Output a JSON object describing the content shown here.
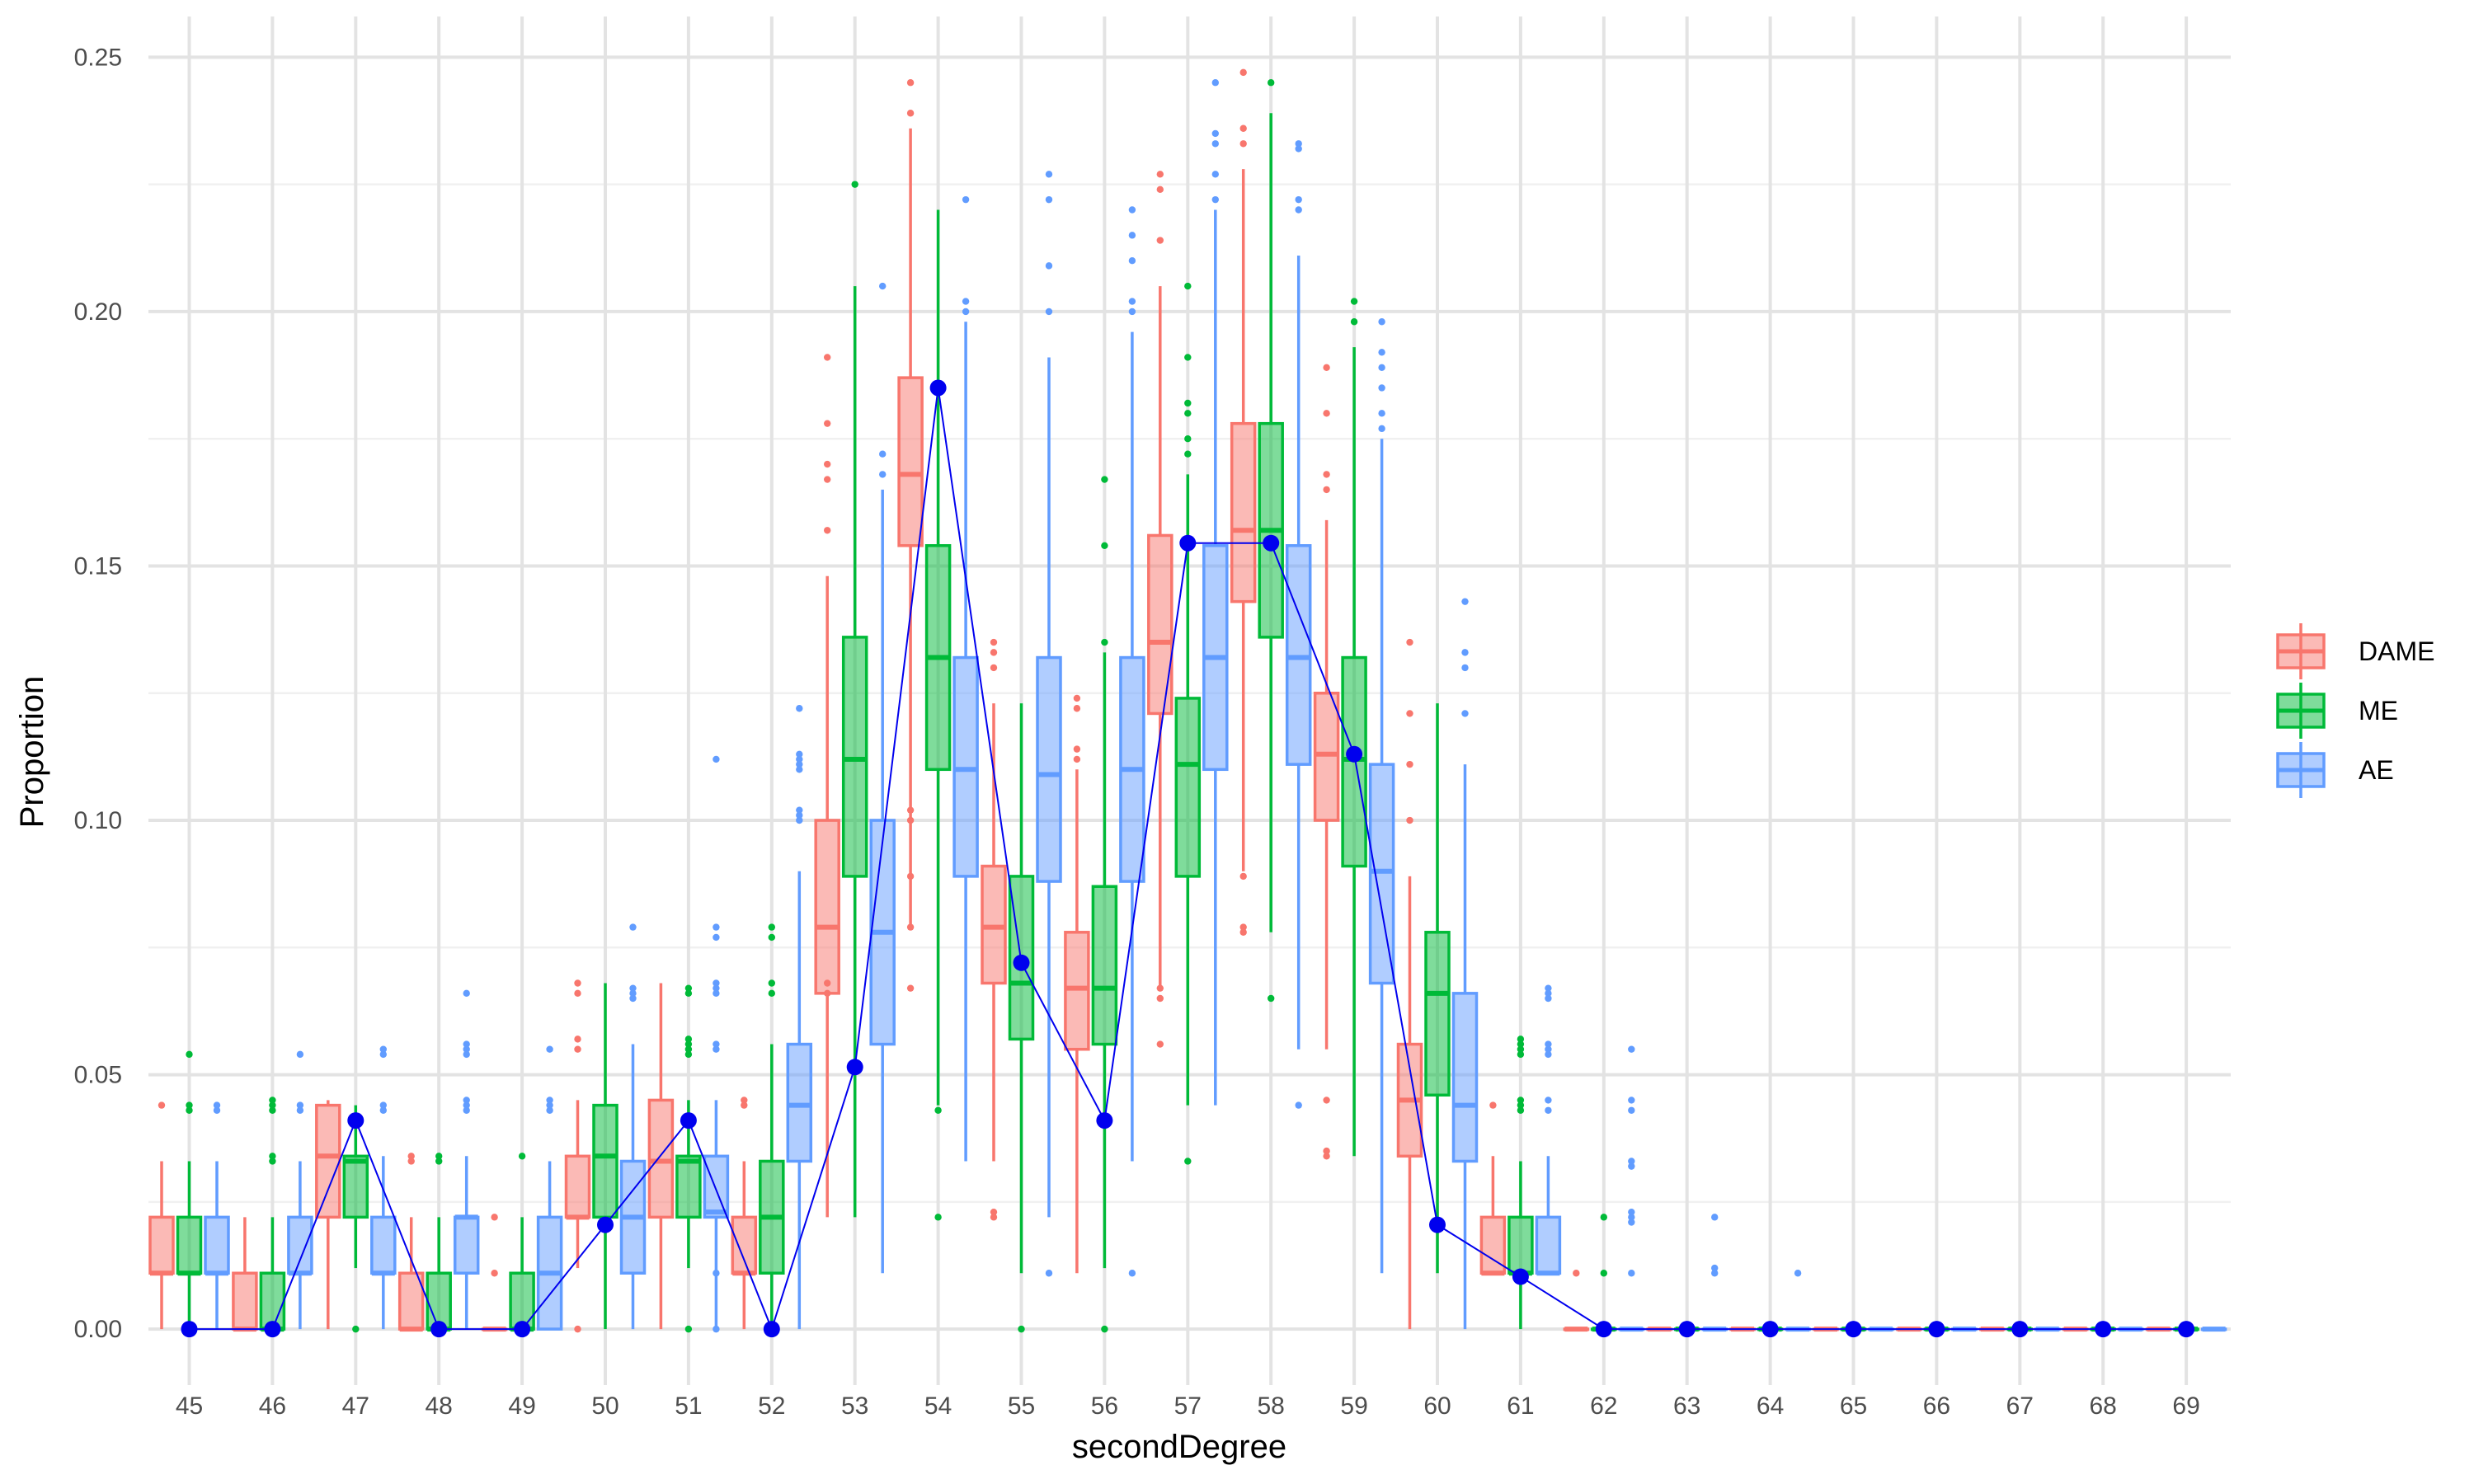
{
  "chart_data": {
    "type": "box",
    "xlabel": "secondDegree",
    "ylabel": "Proportion",
    "ylim": [
      -0.011,
      0.258
    ],
    "yticks": [
      "0.00",
      "0.05",
      "0.10",
      "0.15",
      "0.20",
      "0.25"
    ],
    "grid": true,
    "legend_position": "right",
    "categories": [
      "45",
      "46",
      "47",
      "48",
      "49",
      "50",
      "51",
      "52",
      "53",
      "54",
      "55",
      "56",
      "57",
      "58",
      "59",
      "60",
      "61",
      "62",
      "63",
      "64",
      "65",
      "66",
      "67",
      "68",
      "69"
    ],
    "series": [
      {
        "name": "DAME",
        "color": "#F8766D",
        "boxes": [
          {
            "lw": 0.0,
            "q1": 0.011,
            "med": 0.011,
            "q3": 0.022,
            "uw": 0.033,
            "out": [
              0.044
            ]
          },
          {
            "lw": 0.0,
            "q1": 0.0,
            "med": 0.0,
            "q3": 0.011,
            "uw": 0.022,
            "out": []
          },
          {
            "lw": 0.0,
            "q1": 0.022,
            "med": 0.034,
            "q3": 0.044,
            "uw": 0.045,
            "out": []
          },
          {
            "lw": 0.0,
            "q1": 0.0,
            "med": 0.0,
            "q3": 0.011,
            "uw": 0.022,
            "out": [
              0.033,
              0.034
            ]
          },
          {
            "lw": 0.0,
            "q1": 0.0,
            "med": 0.0,
            "q3": 0.0,
            "uw": 0.0,
            "out": [
              0.011,
              0.022
            ]
          },
          {
            "lw": 0.012,
            "q1": 0.022,
            "med": 0.022,
            "q3": 0.034,
            "uw": 0.045,
            "out": [
              0.055,
              0.057,
              0.066,
              0.068,
              0.0
            ]
          },
          {
            "lw": 0.0,
            "q1": 0.022,
            "med": 0.033,
            "q3": 0.045,
            "uw": 0.068,
            "out": []
          },
          {
            "lw": 0.0,
            "q1": 0.011,
            "med": 0.011,
            "q3": 0.022,
            "uw": 0.033,
            "out": [
              0.044,
              0.045
            ]
          },
          {
            "lw": 0.022,
            "q1": 0.066,
            "med": 0.079,
            "q3": 0.1,
            "uw": 0.148,
            "out": [
              0.157,
              0.167,
              0.17,
              0.178,
              0.191,
              0.066,
              0.068
            ]
          },
          {
            "lw": 0.079,
            "q1": 0.154,
            "med": 0.168,
            "q3": 0.187,
            "uw": 0.236,
            "out": [
              0.239,
              0.245,
              0.1,
              0.102,
              0.089,
              0.079,
              0.067
            ]
          },
          {
            "lw": 0.033,
            "q1": 0.068,
            "med": 0.079,
            "q3": 0.091,
            "uw": 0.123,
            "out": [
              0.13,
              0.133,
              0.135,
              0.022,
              0.023
            ]
          },
          {
            "lw": 0.011,
            "q1": 0.055,
            "med": 0.067,
            "q3": 0.078,
            "uw": 0.11,
            "out": [
              0.112,
              0.114,
              0.122,
              0.124
            ]
          },
          {
            "lw": 0.067,
            "q1": 0.121,
            "med": 0.135,
            "q3": 0.156,
            "uw": 0.205,
            "out": [
              0.214,
              0.224,
              0.227,
              0.065,
              0.067,
              0.056
            ]
          },
          {
            "lw": 0.09,
            "q1": 0.143,
            "med": 0.157,
            "q3": 0.178,
            "uw": 0.228,
            "out": [
              0.233,
              0.236,
              0.247,
              0.089,
              0.079,
              0.078
            ]
          },
          {
            "lw": 0.055,
            "q1": 0.1,
            "med": 0.113,
            "q3": 0.125,
            "uw": 0.159,
            "out": [
              0.165,
              0.168,
              0.18,
              0.189,
              0.045,
              0.034,
              0.035
            ]
          },
          {
            "lw": 0.0,
            "q1": 0.034,
            "med": 0.045,
            "q3": 0.056,
            "uw": 0.089,
            "out": [
              0.1,
              0.111,
              0.121,
              0.135
            ]
          },
          {
            "lw": 0.011,
            "q1": 0.011,
            "med": 0.011,
            "q3": 0.022,
            "uw": 0.034,
            "out": [
              0.044
            ]
          },
          {
            "lw": 0.0,
            "q1": 0.0,
            "med": 0.0,
            "q3": 0.0,
            "uw": 0.0,
            "out": [
              0.011
            ]
          },
          {
            "lw": 0.0,
            "q1": 0.0,
            "med": 0.0,
            "q3": 0.0,
            "uw": 0.0,
            "out": []
          },
          {
            "lw": 0.0,
            "q1": 0.0,
            "med": 0.0,
            "q3": 0.0,
            "uw": 0.0,
            "out": []
          },
          {
            "lw": 0.0,
            "q1": 0.0,
            "med": 0.0,
            "q3": 0.0,
            "uw": 0.0,
            "out": []
          },
          {
            "lw": 0.0,
            "q1": 0.0,
            "med": 0.0,
            "q3": 0.0,
            "uw": 0.0,
            "out": []
          },
          {
            "lw": 0.0,
            "q1": 0.0,
            "med": 0.0,
            "q3": 0.0,
            "uw": 0.0,
            "out": []
          },
          {
            "lw": 0.0,
            "q1": 0.0,
            "med": 0.0,
            "q3": 0.0,
            "uw": 0.0,
            "out": []
          },
          {
            "lw": 0.0,
            "q1": 0.0,
            "med": 0.0,
            "q3": 0.0,
            "uw": 0.0,
            "out": []
          }
        ]
      },
      {
        "name": "ME",
        "color": "#00BA38",
        "boxes": [
          {
            "lw": 0.0,
            "q1": 0.011,
            "med": 0.011,
            "q3": 0.022,
            "uw": 0.033,
            "out": [
              0.043,
              0.044,
              0.054
            ]
          },
          {
            "lw": 0.0,
            "q1": 0.0,
            "med": 0.0,
            "q3": 0.011,
            "uw": 0.022,
            "out": [
              0.033,
              0.034,
              0.043,
              0.044,
              0.045
            ]
          },
          {
            "lw": 0.012,
            "q1": 0.022,
            "med": 0.033,
            "q3": 0.034,
            "uw": 0.044,
            "out": [
              0.0
            ]
          },
          {
            "lw": 0.0,
            "q1": 0.0,
            "med": 0.0,
            "q3": 0.011,
            "uw": 0.022,
            "out": [
              0.033,
              0.034
            ]
          },
          {
            "lw": 0.0,
            "q1": 0.0,
            "med": 0.0,
            "q3": 0.011,
            "uw": 0.022,
            "out": [
              0.034
            ]
          },
          {
            "lw": 0.0,
            "q1": 0.022,
            "med": 0.034,
            "q3": 0.044,
            "uw": 0.068,
            "out": []
          },
          {
            "lw": 0.012,
            "q1": 0.022,
            "med": 0.033,
            "q3": 0.034,
            "uw": 0.045,
            "out": [
              0.054,
              0.055,
              0.056,
              0.057,
              0.066,
              0.067,
              0.0
            ]
          },
          {
            "lw": 0.0,
            "q1": 0.011,
            "med": 0.022,
            "q3": 0.033,
            "uw": 0.056,
            "out": [
              0.066,
              0.068,
              0.077,
              0.079
            ]
          },
          {
            "lw": 0.022,
            "q1": 0.089,
            "med": 0.112,
            "q3": 0.136,
            "uw": 0.205,
            "out": [
              0.225
            ]
          },
          {
            "lw": 0.044,
            "q1": 0.11,
            "med": 0.132,
            "q3": 0.154,
            "uw": 0.22,
            "out": [
              0.043,
              0.022
            ]
          },
          {
            "lw": 0.011,
            "q1": 0.057,
            "med": 0.068,
            "q3": 0.089,
            "uw": 0.123,
            "out": [
              0.0
            ]
          },
          {
            "lw": 0.012,
            "q1": 0.056,
            "med": 0.067,
            "q3": 0.087,
            "uw": 0.133,
            "out": [
              0.135,
              0.154,
              0.167,
              0.0
            ]
          },
          {
            "lw": 0.044,
            "q1": 0.089,
            "med": 0.111,
            "q3": 0.124,
            "uw": 0.168,
            "out": [
              0.172,
              0.175,
              0.18,
              0.182,
              0.191,
              0.205,
              0.033
            ]
          },
          {
            "lw": 0.078,
            "q1": 0.136,
            "med": 0.157,
            "q3": 0.178,
            "uw": 0.239,
            "out": [
              0.245,
              0.065
            ]
          },
          {
            "lw": 0.034,
            "q1": 0.091,
            "med": 0.112,
            "q3": 0.132,
            "uw": 0.193,
            "out": [
              0.198,
              0.202
            ]
          },
          {
            "lw": 0.011,
            "q1": 0.046,
            "med": 0.066,
            "q3": 0.078,
            "uw": 0.123,
            "out": []
          },
          {
            "lw": 0.0,
            "q1": 0.011,
            "med": 0.011,
            "q3": 0.022,
            "uw": 0.033,
            "out": [
              0.043,
              0.044,
              0.045,
              0.054,
              0.055,
              0.056,
              0.057
            ]
          },
          {
            "lw": 0.0,
            "q1": 0.0,
            "med": 0.0,
            "q3": 0.0,
            "uw": 0.0,
            "out": [
              0.011,
              0.022
            ]
          },
          {
            "lw": 0.0,
            "q1": 0.0,
            "med": 0.0,
            "q3": 0.0,
            "uw": 0.0,
            "out": []
          },
          {
            "lw": 0.0,
            "q1": 0.0,
            "med": 0.0,
            "q3": 0.0,
            "uw": 0.0,
            "out": []
          },
          {
            "lw": 0.0,
            "q1": 0.0,
            "med": 0.0,
            "q3": 0.0,
            "uw": 0.0,
            "out": []
          },
          {
            "lw": 0.0,
            "q1": 0.0,
            "med": 0.0,
            "q3": 0.0,
            "uw": 0.0,
            "out": []
          },
          {
            "lw": 0.0,
            "q1": 0.0,
            "med": 0.0,
            "q3": 0.0,
            "uw": 0.0,
            "out": []
          },
          {
            "lw": 0.0,
            "q1": 0.0,
            "med": 0.0,
            "q3": 0.0,
            "uw": 0.0,
            "out": []
          },
          {
            "lw": 0.0,
            "q1": 0.0,
            "med": 0.0,
            "q3": 0.0,
            "uw": 0.0,
            "out": []
          }
        ]
      },
      {
        "name": "AE",
        "color": "#619CFF",
        "boxes": [
          {
            "lw": 0.0,
            "q1": 0.011,
            "med": 0.011,
            "q3": 0.022,
            "uw": 0.033,
            "out": [
              0.043,
              0.044
            ]
          },
          {
            "lw": 0.0,
            "q1": 0.011,
            "med": 0.011,
            "q3": 0.022,
            "uw": 0.033,
            "out": [
              0.043,
              0.044,
              0.054
            ]
          },
          {
            "lw": 0.0,
            "q1": 0.011,
            "med": 0.011,
            "q3": 0.022,
            "uw": 0.034,
            "out": [
              0.043,
              0.044,
              0.054,
              0.055
            ]
          },
          {
            "lw": 0.0,
            "q1": 0.011,
            "med": 0.022,
            "q3": 0.022,
            "uw": 0.034,
            "out": [
              0.043,
              0.044,
              0.045,
              0.054,
              0.055,
              0.056,
              0.066
            ]
          },
          {
            "lw": 0.0,
            "q1": 0.0,
            "med": 0.011,
            "q3": 0.022,
            "uw": 0.033,
            "out": [
              0.043,
              0.044,
              0.045,
              0.055
            ]
          },
          {
            "lw": 0.0,
            "q1": 0.011,
            "med": 0.022,
            "q3": 0.033,
            "uw": 0.056,
            "out": [
              0.065,
              0.066,
              0.067,
              0.079
            ]
          },
          {
            "lw": 0.0,
            "q1": 0.022,
            "med": 0.023,
            "q3": 0.034,
            "uw": 0.045,
            "out": [
              0.055,
              0.056,
              0.066,
              0.067,
              0.068,
              0.077,
              0.079,
              0.112,
              0.0,
              0.011
            ]
          },
          {
            "lw": 0.0,
            "q1": 0.033,
            "med": 0.044,
            "q3": 0.056,
            "uw": 0.09,
            "out": [
              0.1,
              0.101,
              0.102,
              0.11,
              0.111,
              0.112,
              0.113,
              0.122
            ]
          },
          {
            "lw": 0.011,
            "q1": 0.056,
            "med": 0.078,
            "q3": 0.1,
            "uw": 0.165,
            "out": [
              0.168,
              0.172,
              0.205
            ]
          },
          {
            "lw": 0.033,
            "q1": 0.089,
            "med": 0.11,
            "q3": 0.132,
            "uw": 0.198,
            "out": [
              0.2,
              0.202,
              0.222
            ]
          },
          {
            "lw": 0.022,
            "q1": 0.088,
            "med": 0.109,
            "q3": 0.132,
            "uw": 0.191,
            "out": [
              0.2,
              0.209,
              0.222,
              0.227,
              0.011
            ]
          },
          {
            "lw": 0.033,
            "q1": 0.088,
            "med": 0.11,
            "q3": 0.132,
            "uw": 0.196,
            "out": [
              0.2,
              0.202,
              0.21,
              0.215,
              0.22,
              0.011
            ]
          },
          {
            "lw": 0.044,
            "q1": 0.11,
            "med": 0.132,
            "q3": 0.154,
            "uw": 0.22,
            "out": [
              0.222,
              0.227,
              0.233,
              0.235,
              0.245
            ]
          },
          {
            "lw": 0.055,
            "q1": 0.111,
            "med": 0.132,
            "q3": 0.154,
            "uw": 0.211,
            "out": [
              0.22,
              0.222,
              0.232,
              0.233,
              0.044
            ]
          },
          {
            "lw": 0.011,
            "q1": 0.068,
            "med": 0.09,
            "q3": 0.111,
            "uw": 0.175,
            "out": [
              0.177,
              0.18,
              0.185,
              0.189,
              0.192,
              0.198
            ]
          },
          {
            "lw": 0.0,
            "q1": 0.033,
            "med": 0.044,
            "q3": 0.066,
            "uw": 0.111,
            "out": [
              0.121,
              0.13,
              0.133,
              0.143
            ]
          },
          {
            "lw": 0.011,
            "q1": 0.011,
            "med": 0.011,
            "q3": 0.022,
            "uw": 0.034,
            "out": [
              0.043,
              0.045,
              0.054,
              0.055,
              0.056,
              0.065,
              0.066,
              0.067
            ]
          },
          {
            "lw": 0.0,
            "q1": 0.0,
            "med": 0.0,
            "q3": 0.0,
            "uw": 0.0,
            "out": [
              0.011,
              0.021,
              0.022,
              0.023,
              0.032,
              0.033,
              0.043,
              0.045,
              0.055
            ]
          },
          {
            "lw": 0.0,
            "q1": 0.0,
            "med": 0.0,
            "q3": 0.0,
            "uw": 0.0,
            "out": [
              0.011,
              0.012,
              0.022
            ]
          },
          {
            "lw": 0.0,
            "q1": 0.0,
            "med": 0.0,
            "q3": 0.0,
            "uw": 0.0,
            "out": [
              0.011
            ]
          },
          {
            "lw": 0.0,
            "q1": 0.0,
            "med": 0.0,
            "q3": 0.0,
            "uw": 0.0,
            "out": []
          },
          {
            "lw": 0.0,
            "q1": 0.0,
            "med": 0.0,
            "q3": 0.0,
            "uw": 0.0,
            "out": []
          },
          {
            "lw": 0.0,
            "q1": 0.0,
            "med": 0.0,
            "q3": 0.0,
            "uw": 0.0,
            "out": []
          },
          {
            "lw": 0.0,
            "q1": 0.0,
            "med": 0.0,
            "q3": 0.0,
            "uw": 0.0,
            "out": []
          },
          {
            "lw": 0.0,
            "q1": 0.0,
            "med": 0.0,
            "q3": 0.0,
            "uw": 0.0,
            "out": []
          }
        ]
      }
    ],
    "line": {
      "color": "#0000EE",
      "values": [
        0.0,
        0.0,
        0.041,
        0.0,
        0.0,
        0.0205,
        0.041,
        0.0,
        0.0515,
        0.185,
        0.072,
        0.041,
        0.1545,
        0.1545,
        0.113,
        0.0205,
        0.0103,
        0.0,
        0.0,
        0.0,
        0.0,
        0.0,
        0.0,
        0.0,
        0.0
      ]
    }
  }
}
